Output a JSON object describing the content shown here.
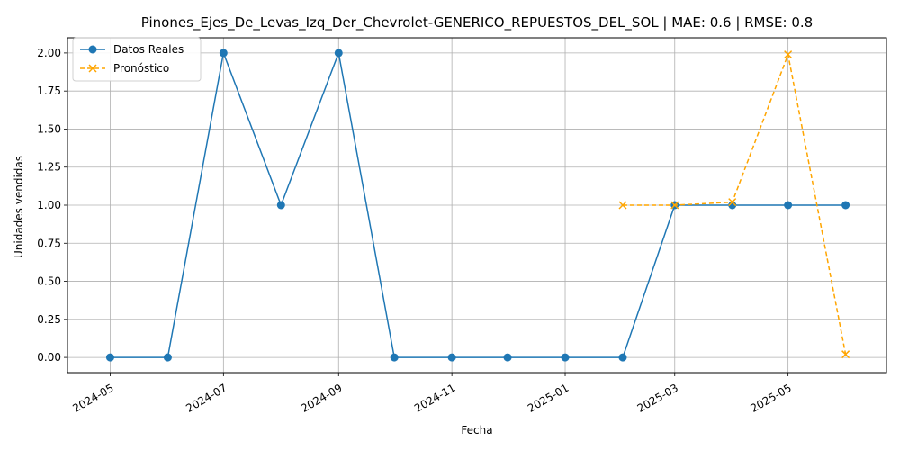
{
  "chart_data": {
    "type": "line",
    "title": "Pinones_Ejes_De_Levas_Izq_Der_Chevrolet-GENERICO_REPUESTOS_DEL_SOL | MAE: 0.6 | RMSE: 0.8",
    "xlabel": "Fecha",
    "ylabel": "Unidades vendidas",
    "xlim": [
      "2024-04-08",
      "2025-06-23"
    ],
    "ylim": [
      -0.1,
      2.1
    ],
    "grid": true,
    "legend_position": "top-left",
    "x_ticks": [
      "2024-05",
      "2024-07",
      "2024-09",
      "2024-11",
      "2025-01",
      "2025-03",
      "2025-05"
    ],
    "y_ticks": [
      "0.00",
      "0.25",
      "0.50",
      "0.75",
      "1.00",
      "1.25",
      "1.50",
      "1.75",
      "2.00"
    ],
    "series": [
      {
        "name": "Datos Reales",
        "color": "#1f77b4",
        "marker": "circle",
        "line_style": "solid",
        "x": [
          "2024-05-01",
          "2024-06-01",
          "2024-07-01",
          "2024-08-01",
          "2024-09-01",
          "2024-10-01",
          "2024-11-01",
          "2024-12-01",
          "2025-01-01",
          "2025-02-01",
          "2025-03-01",
          "2025-04-01",
          "2025-05-01",
          "2025-06-01"
        ],
        "values": [
          0,
          0,
          2,
          1,
          2,
          0,
          0,
          0,
          0,
          0,
          1,
          1,
          1,
          1
        ]
      },
      {
        "name": "Pronóstico",
        "color": "#ffa500",
        "marker": "x",
        "line_style": "dashed",
        "x": [
          "2025-02-01",
          "2025-03-01",
          "2025-04-01",
          "2025-05-01",
          "2025-06-01"
        ],
        "values": [
          1.0,
          1.0,
          1.02,
          1.99,
          0.02
        ]
      }
    ]
  }
}
